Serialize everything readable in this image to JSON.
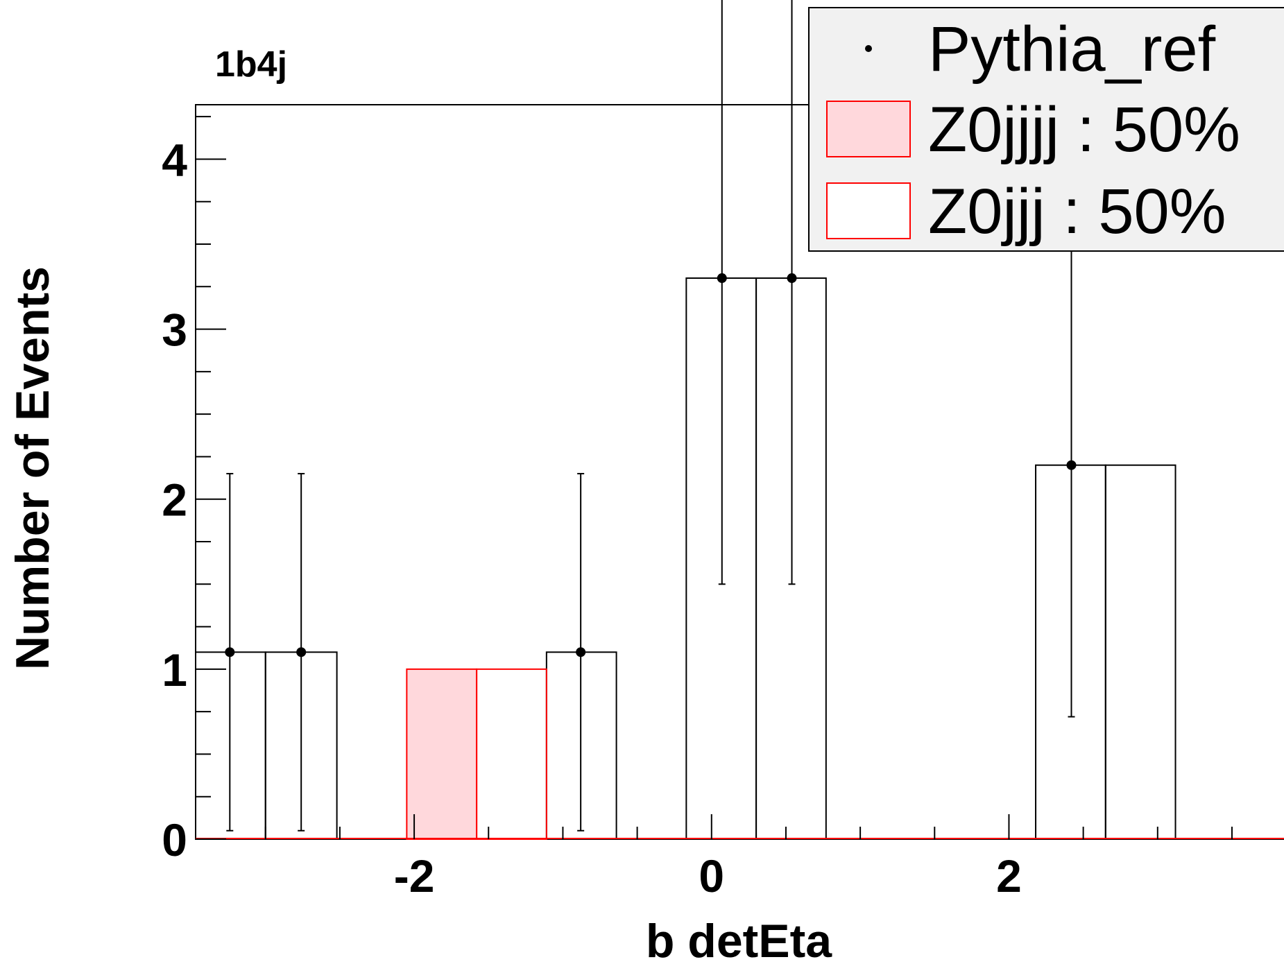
{
  "chart_data": {
    "type": "bar",
    "title": "1b4j",
    "xlabel": "b detEta",
    "ylabel": "Number of Events",
    "xlim": [
      -3.47,
      3.85
    ],
    "ylim": [
      0,
      4.32
    ],
    "x_ticks": [
      "-2",
      "0",
      "2"
    ],
    "y_ticks": [
      "0",
      "1",
      "2",
      "3",
      "4"
    ],
    "bin_edges": [
      -3.47,
      -2.52,
      -1.58,
      -0.64,
      0.3,
      1.24,
      2.18,
      3.12,
      3.85
    ],
    "bins": [
      {
        "lo": -3.47,
        "hi": -3.0,
        "value": 1.1
      },
      {
        "lo": -3.0,
        "hi": -2.52,
        "value": 1.1
      },
      {
        "lo": -2.52,
        "hi": -2.05,
        "value": 0
      },
      {
        "lo": -2.05,
        "hi": -1.58,
        "value": 0
      },
      {
        "lo": -1.58,
        "hi": -1.11,
        "value": 0
      },
      {
        "lo": -1.11,
        "hi": -0.64,
        "value": 1.1
      },
      {
        "lo": -0.64,
        "hi": -0.17,
        "value": 0
      },
      {
        "lo": -0.17,
        "hi": 0.3,
        "value": 3.3
      },
      {
        "lo": 0.3,
        "hi": 0.77,
        "value": 3.3
      },
      {
        "lo": 0.77,
        "hi": 1.24,
        "value": 0
      },
      {
        "lo": 1.24,
        "hi": 1.71,
        "value": 0
      },
      {
        "lo": 1.71,
        "hi": 2.18,
        "value": 0
      },
      {
        "lo": 2.18,
        "hi": 2.65,
        "value": 2.2
      },
      {
        "lo": 2.65,
        "hi": 3.12,
        "value": 2.2
      }
    ],
    "series": [
      {
        "name": "Pythia_ref",
        "style": "points",
        "color": "#000000",
        "points": [
          {
            "x": -3.24,
            "y": 1.1,
            "err_low": 1.05,
            "err_high": 1.05
          },
          {
            "x": -2.76,
            "y": 1.1,
            "err_low": 1.05,
            "err_high": 1.05
          },
          {
            "x": -0.88,
            "y": 1.1,
            "err_low": 1.05,
            "err_high": 1.05
          },
          {
            "x": 0.07,
            "y": 3.3,
            "err_low": 1.8,
            "err_high": 1.8
          },
          {
            "x": 0.54,
            "y": 3.3,
            "err_low": 1.8,
            "err_high": 1.8
          },
          {
            "x": 2.42,
            "y": 2.2,
            "err_low": 1.48,
            "err_high": 1.48
          }
        ]
      },
      {
        "name": "Z0jjjj : 50%",
        "style": "filled",
        "color": "#ff0000",
        "fill": "#ffd8dc",
        "bins": [
          {
            "lo": -2.05,
            "hi": -1.58,
            "value": 1.0
          }
        ]
      },
      {
        "name": "Z0jjj : 50%",
        "style": "outline",
        "color": "#ff0000",
        "bins": [
          {
            "lo": -1.58,
            "hi": -1.11,
            "value": 1.0
          }
        ]
      }
    ],
    "legend": {
      "position": "top-right",
      "entries": [
        "Pythia_ref",
        "Z0jjjj : 50%",
        "Z0jjj : 50%"
      ]
    }
  }
}
